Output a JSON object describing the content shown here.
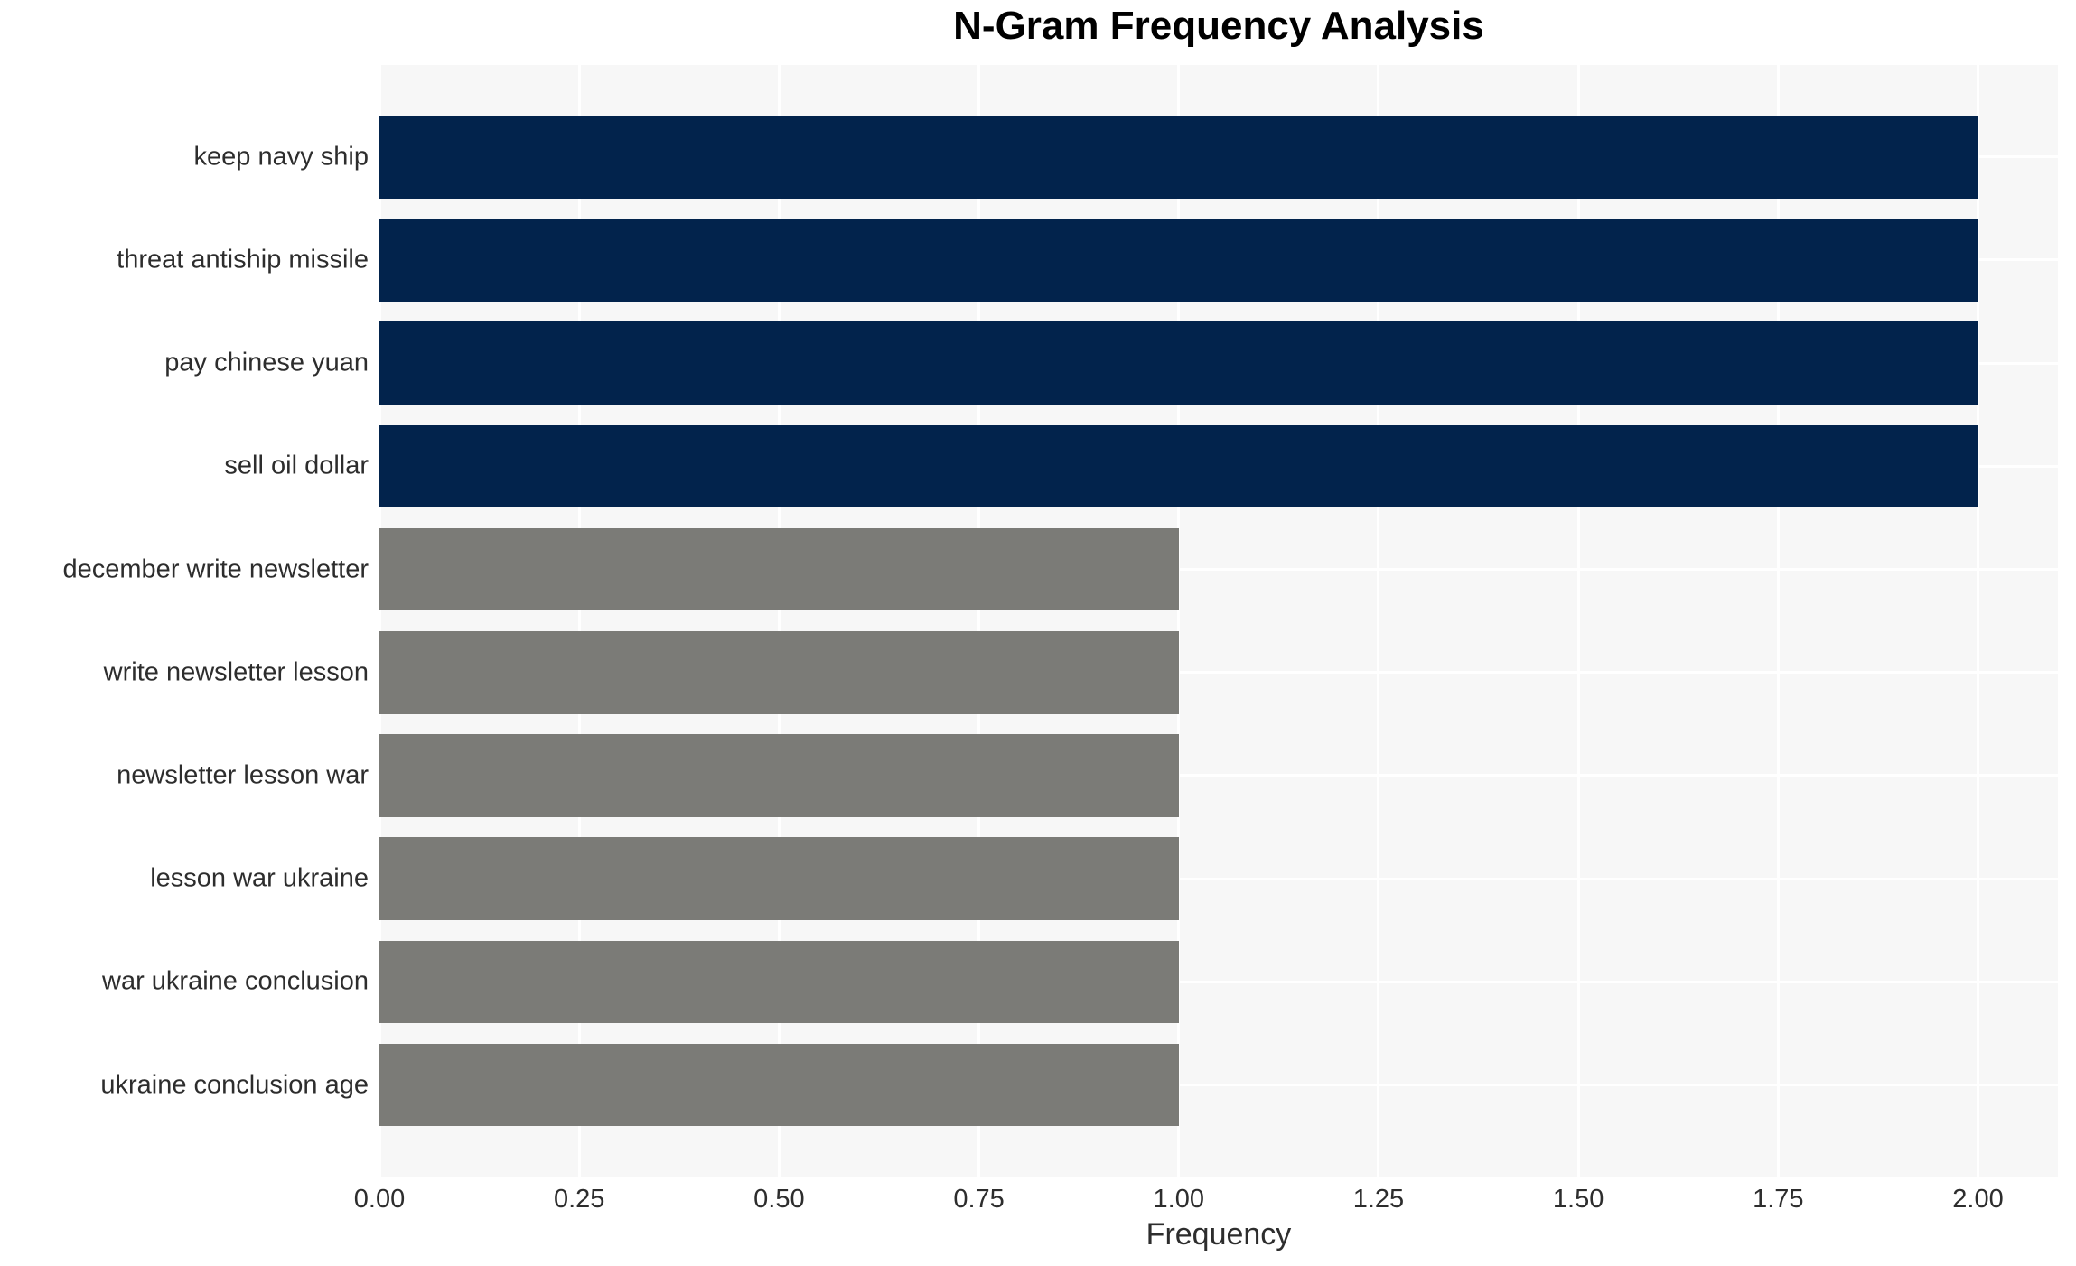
{
  "chart_data": {
    "type": "bar",
    "orientation": "horizontal",
    "title": "N-Gram Frequency Analysis",
    "xlabel": "Frequency",
    "ylabel": "",
    "categories": [
      "keep navy ship",
      "threat antiship missile",
      "pay chinese yuan",
      "sell oil dollar",
      "december write newsletter",
      "write newsletter lesson",
      "newsletter lesson war",
      "lesson war ukraine",
      "war ukraine conclusion",
      "ukraine conclusion age"
    ],
    "values": [
      2,
      2,
      2,
      2,
      1,
      1,
      1,
      1,
      1,
      1
    ],
    "bar_colors": [
      "#02234c",
      "#02234c",
      "#02234c",
      "#02234c",
      "#7b7b77",
      "#7b7b77",
      "#7b7b77",
      "#7b7b77",
      "#7b7b77",
      "#7b7b77"
    ],
    "xlim": [
      0,
      2.1
    ],
    "xticks": [
      0,
      0.25,
      0.5,
      0.75,
      1,
      1.25,
      1.5,
      1.75,
      2
    ],
    "xtick_labels": [
      "0.00",
      "0.25",
      "0.50",
      "0.75",
      "1.00",
      "1.25",
      "1.50",
      "1.75",
      "2.00"
    ],
    "grid": true,
    "legend": false,
    "colors": {
      "bar_high_frequency": "#02234c",
      "bar_low_frequency": "#7b7b77",
      "plot_background": "#f7f7f7",
      "gridline": "#ffffff",
      "tick_text": "#2d2d2d",
      "title_text": "#000000"
    }
  }
}
